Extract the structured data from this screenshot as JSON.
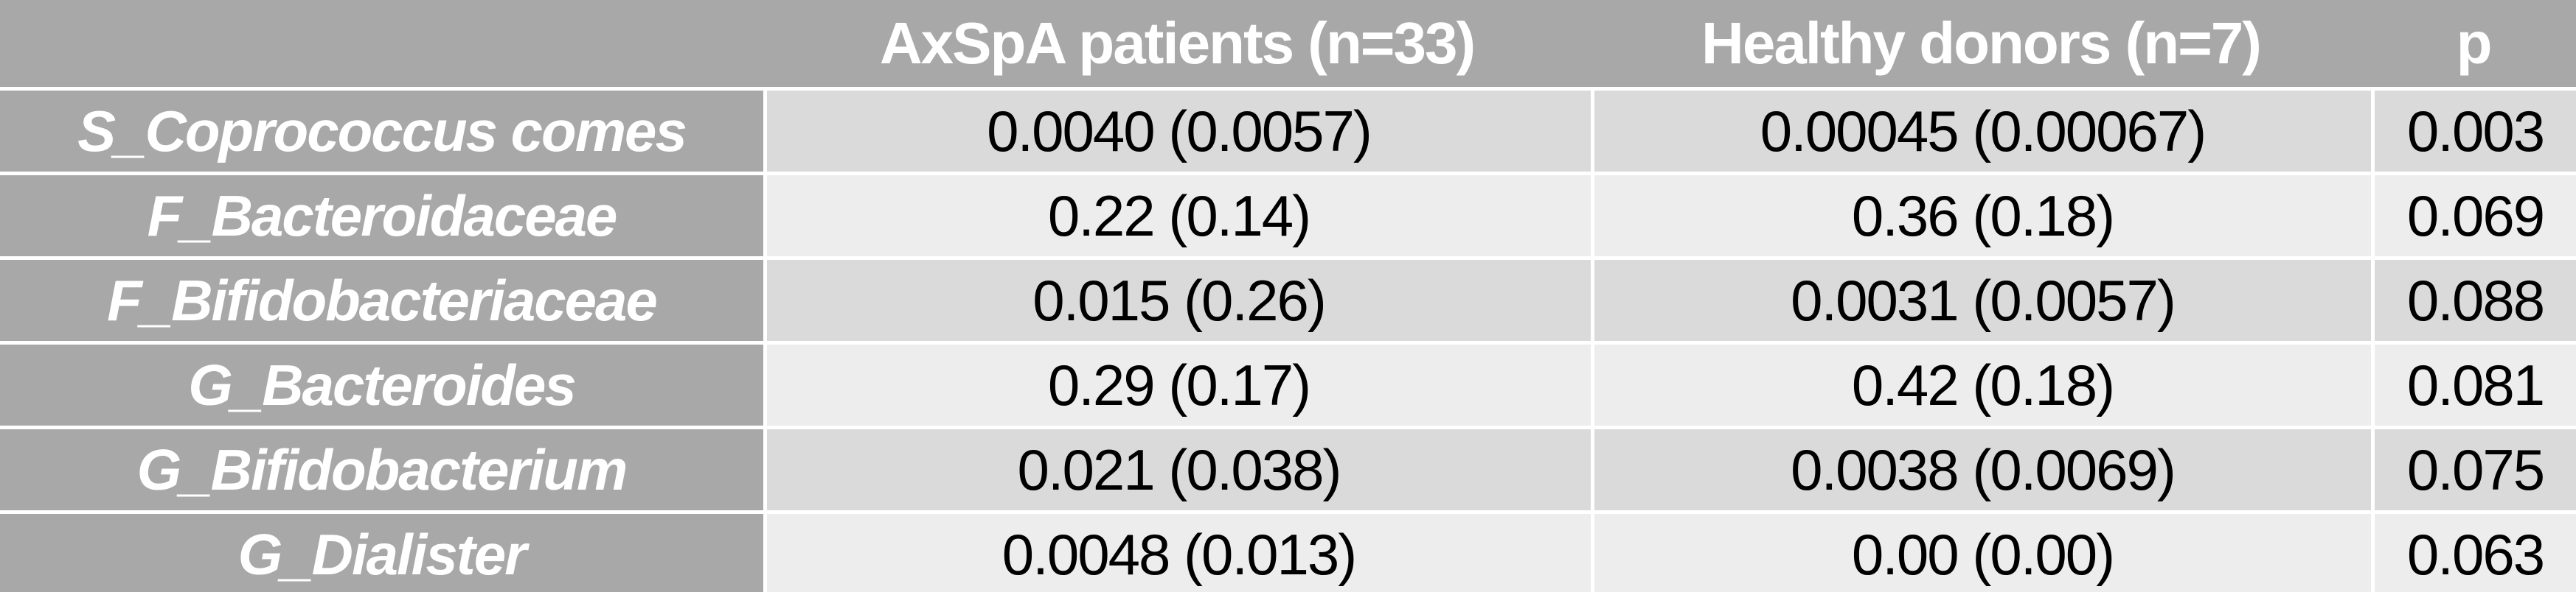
{
  "colors": {
    "header_bg": "#a8a8a8",
    "row_label_bg": "#a8a8a8",
    "band_dark": "#dadada",
    "band_light": "#ededed",
    "gridline": "#ffffff",
    "header_text": "#ffffff",
    "data_text": "#000000"
  },
  "table": {
    "columns": {
      "taxon": "",
      "axspa": "AxSpA patients (n=33)",
      "healthy": "Healthy donors (n=7)",
      "p": "p"
    },
    "rows": [
      {
        "name": "S_Coprococcus comes",
        "axspa": "0.0040 (0.0057)",
        "healthy": "0.00045 (0.00067)",
        "p": "0.003"
      },
      {
        "name": "F_Bacteroidaceae",
        "axspa": "0.22 (0.14)",
        "healthy": "0.36 (0.18)",
        "p": "0.069"
      },
      {
        "name": "F_Bifidobacteriaceae",
        "axspa": "0.015 (0.26)",
        "healthy": "0.0031 (0.0057)",
        "p": "0.088"
      },
      {
        "name": "G_Bacteroides",
        "axspa": "0.29 (0.17)",
        "healthy": "0.42 (0.18)",
        "p": "0.081"
      },
      {
        "name": "G_Bifidobacterium",
        "axspa": "0.021 (0.038)",
        "healthy": "0.0038 (0.0069)",
        "p": "0.075"
      },
      {
        "name": "G_Dialister",
        "axspa": "0.0048 (0.013)",
        "healthy": "0.00 (0.00)",
        "p": "0.063"
      }
    ]
  },
  "chart_data": {
    "type": "table",
    "title": "",
    "columns": [
      "",
      "AxSpA patients (n=33)",
      "Healthy donors (n=7)",
      "p"
    ],
    "rows": [
      [
        "S_Coprococcus comes",
        "0.0040 (0.0057)",
        "0.00045 (0.00067)",
        "0.003"
      ],
      [
        "F_Bacteroidaceae",
        "0.22 (0.14)",
        "0.36 (0.18)",
        "0.069"
      ],
      [
        "F_Bifidobacteriaceae",
        "0.015 (0.26)",
        "0.0031 (0.0057)",
        "0.088"
      ],
      [
        "G_Bacteroides",
        "0.29 (0.17)",
        "0.42 (0.18)",
        "0.081"
      ],
      [
        "G_Bifidobacterium",
        "0.021 (0.038)",
        "0.0038 (0.0069)",
        "0.075"
      ],
      [
        "G_Dialister",
        "0.0048 (0.013)",
        "0.00 (0.00)",
        "0.063"
      ]
    ]
  }
}
